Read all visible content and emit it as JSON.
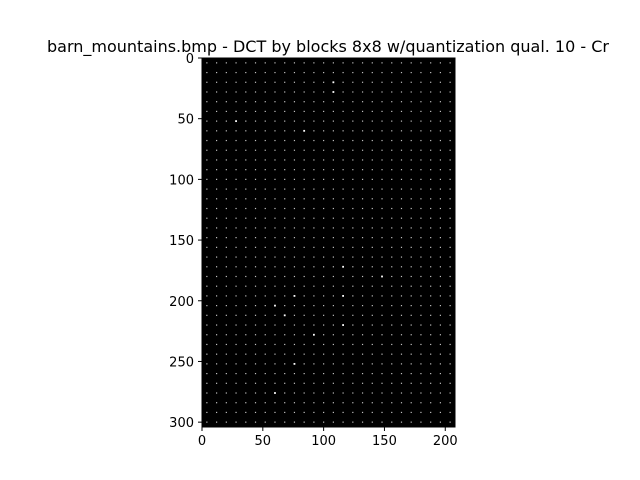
{
  "chart_data": {
    "type": "heatmap",
    "title": "barn_mountains.bmp - DCT by blocks 8x8  w/quantization qual. 10 - Cr",
    "image_width": 208,
    "image_height": 304,
    "block_size": 8,
    "xlim": [
      0,
      208
    ],
    "ylim": [
      304,
      0
    ],
    "x_ticks": [
      0,
      50,
      100,
      150,
      200
    ],
    "y_ticks": [
      0,
      50,
      100,
      150,
      200,
      250,
      300
    ],
    "x_tick_labels": [
      "0",
      "50",
      "100",
      "150",
      "200"
    ],
    "y_tick_labels": [
      "0",
      "50",
      "100",
      "150",
      "200",
      "250",
      "300"
    ],
    "grid": false,
    "colormap": "gray",
    "background_color": "#000000",
    "coefficient_color": "#ffffff",
    "bright_blocks": [
      [
        2,
        13
      ],
      [
        3,
        13
      ],
      [
        6,
        3
      ],
      [
        7,
        10
      ],
      [
        21,
        14
      ],
      [
        22,
        18
      ],
      [
        24,
        9
      ],
      [
        24,
        14
      ],
      [
        25,
        7
      ],
      [
        26,
        8
      ],
      [
        27,
        14
      ],
      [
        28,
        11
      ],
      [
        31,
        9
      ],
      [
        34,
        7
      ]
    ]
  }
}
